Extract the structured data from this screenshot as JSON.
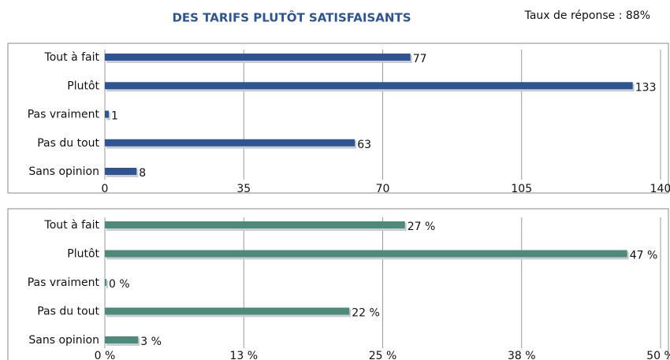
{
  "chart_data": [
    {
      "type": "hbar",
      "title": "DES TARIFS PLUTÔT SATISFAISANTS",
      "annotation": "Taux de réponse : 88%",
      "categories": [
        "Tout à fait",
        "Plutôt",
        "Pas vraiment",
        "Pas du tout",
        "Sans opinion"
      ],
      "values": [
        77,
        133,
        1,
        63,
        8
      ],
      "color": "#2e5591",
      "xlim": [
        0,
        140
      ],
      "xticks": [
        0,
        35,
        70,
        105,
        140
      ],
      "grid": true
    },
    {
      "type": "hbar",
      "categories": [
        "Tout à fait",
        "Plutôt",
        "Pas vraiment",
        "Pas du tout",
        "Sans opinion"
      ],
      "values": [
        27,
        47,
        0,
        22,
        3
      ],
      "value_labels": [
        "27 %",
        "47 %",
        "0 %",
        "22 %",
        "3 %"
      ],
      "color": "#4e8a7a",
      "xlim": [
        0,
        50
      ],
      "xticks": [
        {
          "value": 0,
          "label": "0 %"
        },
        {
          "value": 12.5,
          "label": "13 %"
        },
        {
          "value": 25,
          "label": "25 %"
        },
        {
          "value": 37.5,
          "label": "38 %"
        },
        {
          "value": 50,
          "label": "50 %"
        }
      ],
      "grid": true
    }
  ]
}
